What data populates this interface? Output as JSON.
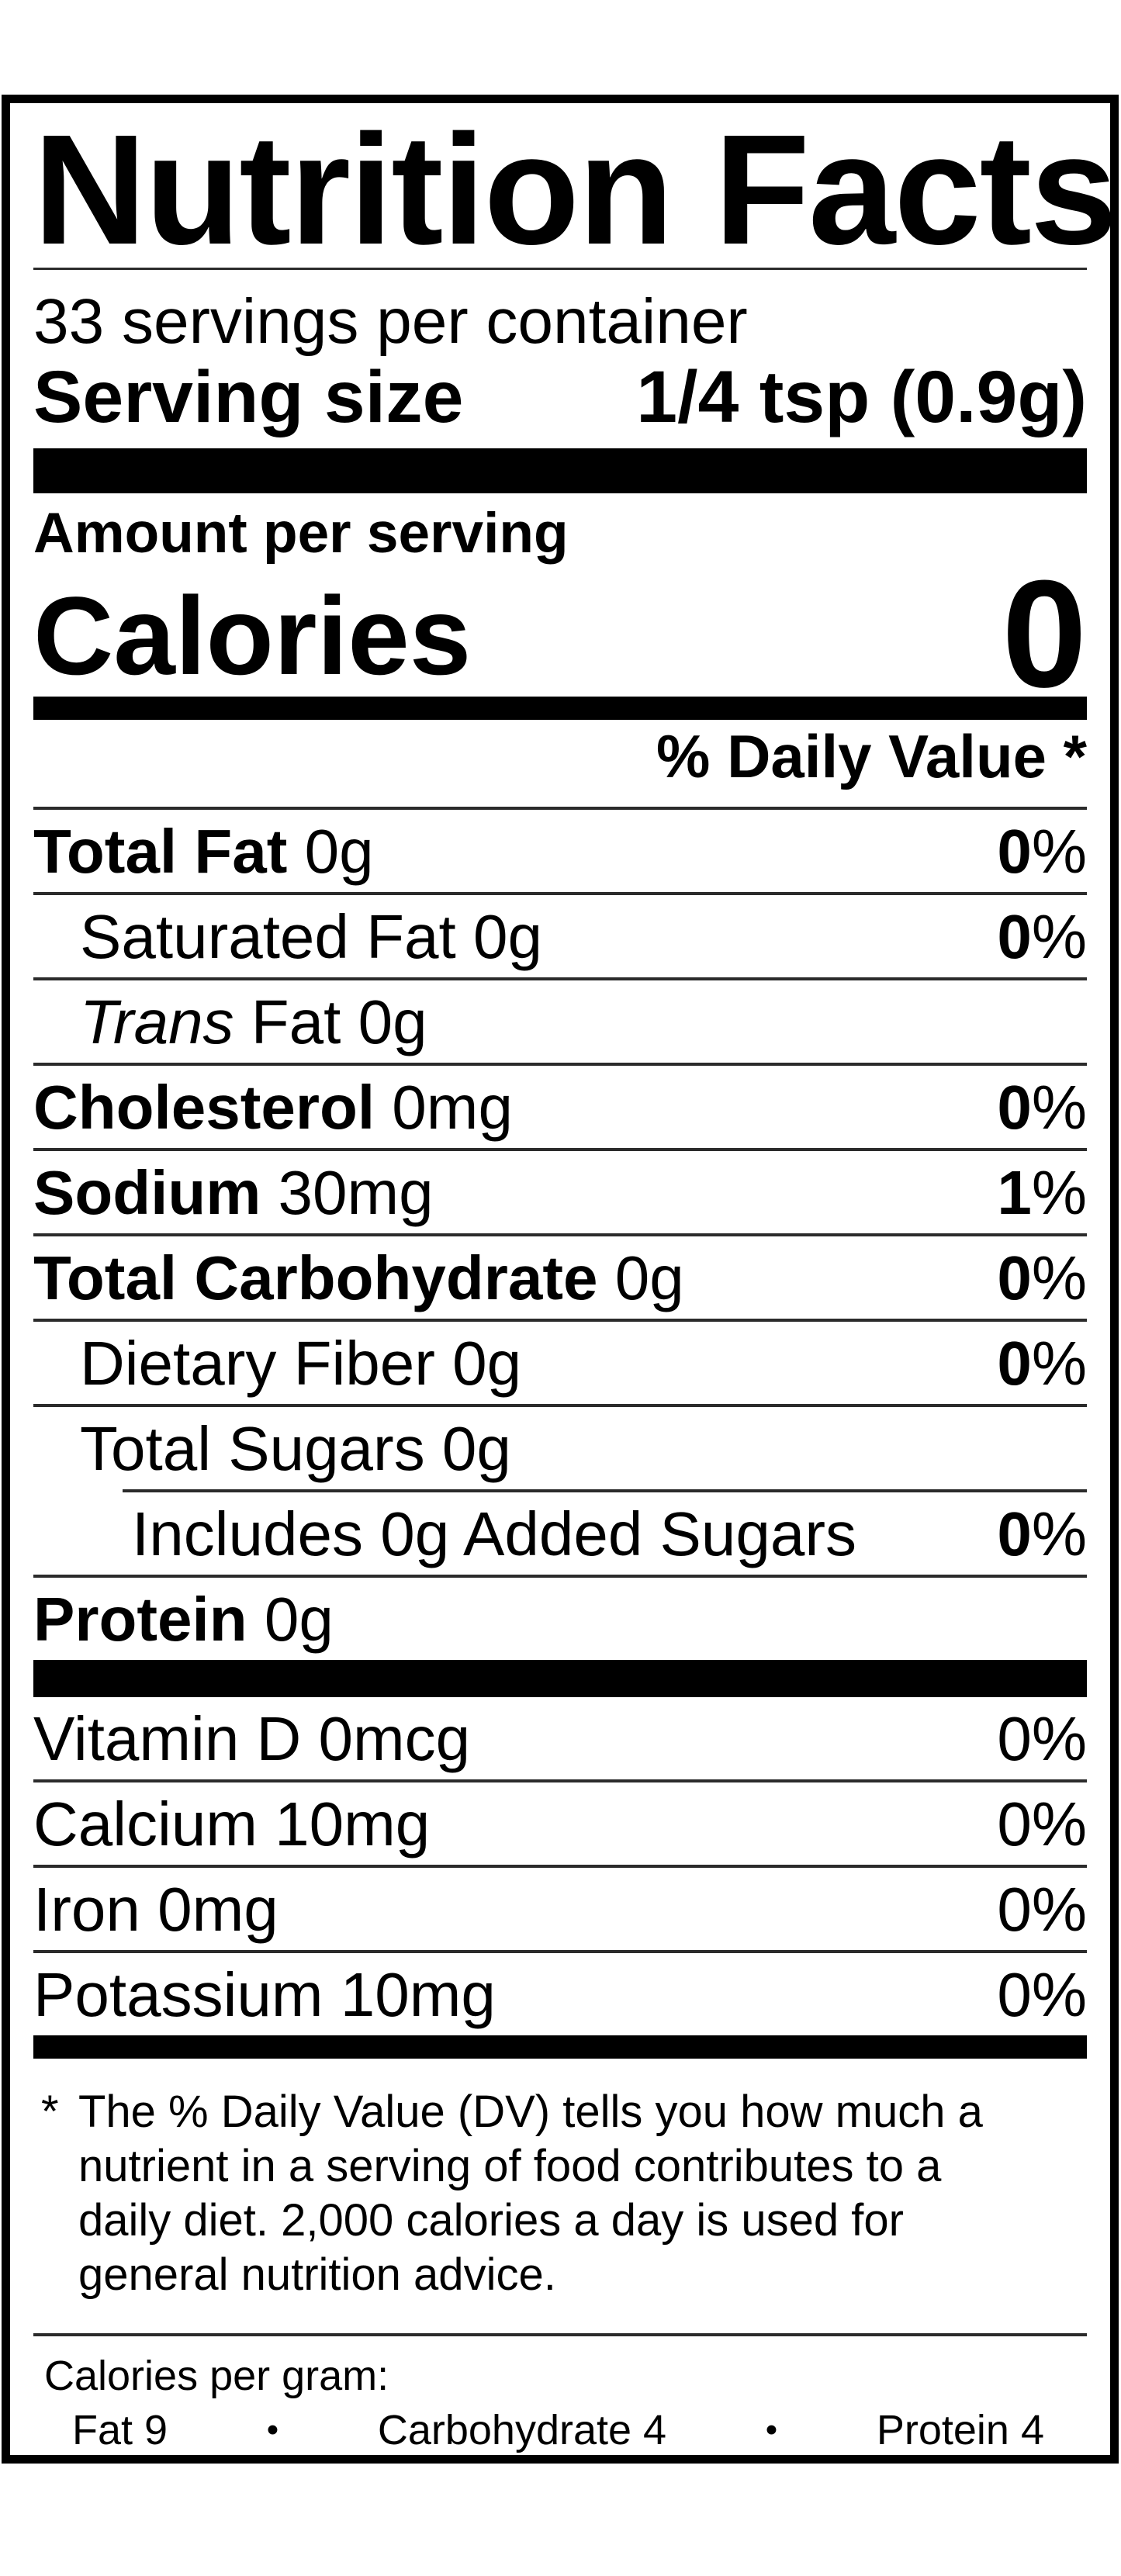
{
  "label": {
    "title": "Nutrition Facts",
    "servings_per_container": "33 servings per container",
    "serving_size": {
      "label": "Serving size",
      "value": "1/4 tsp (0.9g)"
    },
    "amount_per_serving": "Amount per serving",
    "calories": {
      "label": "Calories",
      "value": "0"
    },
    "daily_value_header": "% Daily Value *",
    "nutrients": [
      {
        "b": "Total Fat",
        "r": " 0g",
        "dv": "0",
        "pct": "%"
      },
      {
        "r": "Saturated Fat 0g",
        "dv": "0",
        "pct": "%"
      },
      {
        "i": "Trans",
        "r": " Fat 0g",
        "dv": "",
        "pct": ""
      },
      {
        "b": "Cholesterol",
        "r": " 0mg",
        "dv": "0",
        "pct": "%"
      },
      {
        "b": "Sodium",
        "r": " 30mg",
        "dv": "1",
        "pct": "%"
      },
      {
        "b": "Total Carbohydrate",
        "r": " 0g",
        "dv": "0",
        "pct": "%"
      },
      {
        "r": "Dietary Fiber 0g",
        "dv": "0",
        "pct": "%"
      },
      {
        "r": "Total Sugars 0g",
        "dv": "",
        "pct": ""
      },
      {
        "r": "Includes 0g Added Sugars",
        "dv": "0",
        "pct": "%"
      },
      {
        "b": "Protein",
        "r": " 0g",
        "dv": "",
        "pct": ""
      }
    ],
    "vitamins": [
      {
        "r": "Vitamin D 0mcg",
        "pct": "0%"
      },
      {
        "r": "Calcium 10mg",
        "pct": "0%"
      },
      {
        "r": "Iron 0mg",
        "pct": "0%"
      },
      {
        "r": "Potassium 10mg",
        "pct": "0%"
      }
    ],
    "footnote": {
      "marker": "*",
      "lines": [
        "The % Daily Value (DV) tells you how much a",
        "nutrient in a serving of food contributes to a",
        "daily diet. 2,000 calories a day is used for",
        "general nutrition advice."
      ]
    },
    "calories_per_gram": {
      "label": "Calories per gram:",
      "items": [
        "Fat 9",
        "Carbohydrate 4",
        "Protein 4"
      ],
      "bullet": "•"
    }
  }
}
